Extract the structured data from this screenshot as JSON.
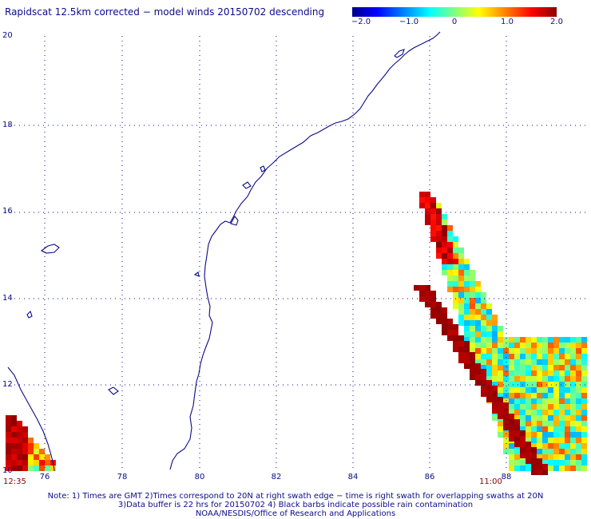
{
  "title": "Rapidscat 12.5km corrected − model winds 20150702 descending",
  "colorbar": {
    "labels": [
      "−2.0",
      "−1.0",
      "0",
      "1.0",
      "2.0"
    ],
    "range": [
      -2.0,
      2.0
    ]
  },
  "axes": {
    "lon_labels": [
      "76",
      "78",
      "80",
      "82",
      "84",
      "86",
      "88"
    ],
    "lat_labels": [
      "20",
      "18",
      "16",
      "14",
      "12",
      "10"
    ]
  },
  "times": {
    "left": "12:35",
    "right": "11:00"
  },
  "notes": [
    "Note: 1) Times are GMT 2)Times correspond to 20N at right swath edge − time is right swath for overlapping swaths at 20N",
    "3)Data buffer is 22 hrs for 20150702 4) Black barbs indicate possible rain contamination",
    "NOAA/NESDIS/Office of Research and Applications"
  ],
  "colors": {
    "coast": "#0b0b8a",
    "grid": "#0b0b8a",
    "time": "#8b0000"
  }
}
